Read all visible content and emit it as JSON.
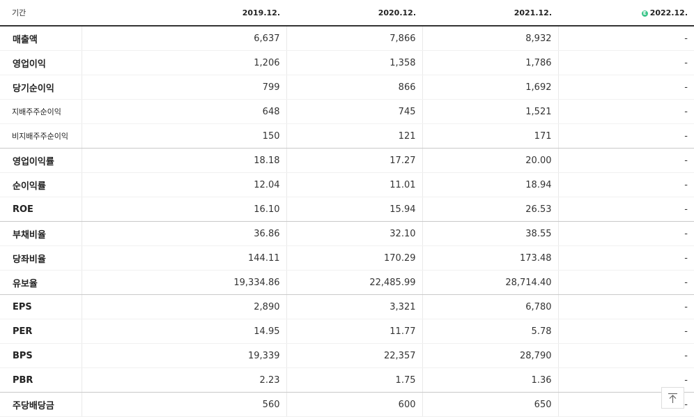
{
  "table": {
    "header": {
      "label": "기간",
      "periods": [
        "2019.12.",
        "2020.12.",
        "2021.12.",
        "2022.12."
      ],
      "estimate_marker": "E"
    },
    "rows": [
      {
        "label": "매출액",
        "values": [
          "6,637",
          "7,866",
          "8,932",
          "-"
        ]
      },
      {
        "label": "영업이익",
        "values": [
          "1,206",
          "1,358",
          "1,786",
          "-"
        ]
      },
      {
        "label": "당기순이익",
        "values": [
          "799",
          "866",
          "1,692",
          "-"
        ]
      },
      {
        "label": "지배주주순이익",
        "values": [
          "648",
          "745",
          "1,521",
          "-"
        ]
      },
      {
        "label": "비지배주주순이익",
        "values": [
          "150",
          "121",
          "171",
          "-"
        ]
      },
      {
        "label": "영업이익률",
        "values": [
          "18.18",
          "17.27",
          "20.00",
          "-"
        ]
      },
      {
        "label": "순이익률",
        "values": [
          "12.04",
          "11.01",
          "18.94",
          "-"
        ]
      },
      {
        "label": "ROE",
        "values": [
          "16.10",
          "15.94",
          "26.53",
          "-"
        ]
      },
      {
        "label": "부채비율",
        "values": [
          "36.86",
          "32.10",
          "38.55",
          "-"
        ]
      },
      {
        "label": "당좌비율",
        "values": [
          "144.11",
          "170.29",
          "173.48",
          "-"
        ]
      },
      {
        "label": "유보율",
        "values": [
          "19,334.86",
          "22,485.99",
          "28,714.40",
          "-"
        ]
      },
      {
        "label": "EPS",
        "values": [
          "2,890",
          "3,321",
          "6,780",
          "-"
        ]
      },
      {
        "label": "PER",
        "values": [
          "14.95",
          "11.77",
          "5.78",
          "-"
        ]
      },
      {
        "label": "BPS",
        "values": [
          "19,339",
          "22,357",
          "28,790",
          "-"
        ]
      },
      {
        "label": "PBR",
        "values": [
          "2.23",
          "1.75",
          "1.36",
          "-"
        ]
      },
      {
        "label": "주당배당금",
        "values": [
          "560",
          "600",
          "650",
          "-"
        ]
      }
    ]
  },
  "scroll_top_button": {
    "icon": "arrow-up-to-top-icon"
  },
  "colors": {
    "estimate_badge": "#3cc58a",
    "header_rule": "#333333",
    "group_rule": "#c9c9c9",
    "row_rule": "#f1f1f1"
  }
}
